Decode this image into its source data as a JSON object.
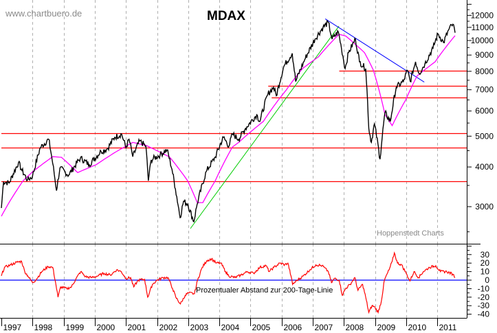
{
  "chart_data": {
    "type": "line",
    "title": "MDAX",
    "watermark": "www.chartbuero.de",
    "source": "Hoppenstedt Charts",
    "x_tick_labels": [
      "1997",
      "1998",
      "1999",
      "2000",
      "2001",
      "2002",
      "2003",
      "2004",
      "2005",
      "2006",
      "2007",
      "2008",
      "2009",
      "2010",
      "2011"
    ],
    "price_panel": {
      "scale": "log",
      "ylim": [
        2300,
        13000
      ],
      "y_tick_labels": [
        3000,
        4000,
        5000,
        6000,
        7000,
        8000,
        9000,
        10000,
        11000,
        12000
      ],
      "price_series": {
        "name": "MDAX",
        "color": "#000000",
        "points": [
          [
            1997.0,
            2970
          ],
          [
            1997.07,
            3600
          ],
          [
            1997.25,
            3560
          ],
          [
            1997.55,
            4130
          ],
          [
            1997.66,
            3900
          ],
          [
            1997.84,
            3640
          ],
          [
            1998.0,
            3740
          ],
          [
            1998.25,
            4600
          ],
          [
            1998.52,
            4890
          ],
          [
            1998.65,
            4100
          ],
          [
            1998.77,
            3370
          ],
          [
            1998.88,
            3970
          ],
          [
            1999.16,
            3770
          ],
          [
            1999.54,
            4270
          ],
          [
            1999.82,
            4070
          ],
          [
            2000.2,
            4480
          ],
          [
            2000.4,
            4560
          ],
          [
            2000.64,
            4960
          ],
          [
            2000.86,
            5080
          ],
          [
            2001.0,
            4600
          ],
          [
            2001.1,
            4890
          ],
          [
            2001.22,
            4310
          ],
          [
            2001.44,
            4830
          ],
          [
            2001.64,
            4650
          ],
          [
            2001.72,
            3620
          ],
          [
            2001.81,
            4210
          ],
          [
            2002.1,
            4370
          ],
          [
            2002.32,
            4530
          ],
          [
            2002.48,
            3930
          ],
          [
            2002.59,
            3410
          ],
          [
            2002.74,
            2770
          ],
          [
            2002.85,
            3120
          ],
          [
            2002.98,
            3060
          ],
          [
            2003.18,
            2690
          ],
          [
            2003.29,
            3060
          ],
          [
            2003.58,
            3870
          ],
          [
            2003.87,
            4300
          ],
          [
            2004.13,
            4960
          ],
          [
            2004.31,
            4650
          ],
          [
            2004.42,
            5080
          ],
          [
            2004.62,
            4890
          ],
          [
            2004.84,
            5290
          ],
          [
            2005.2,
            5840
          ],
          [
            2005.3,
            5560
          ],
          [
            2005.56,
            6790
          ],
          [
            2005.74,
            7130
          ],
          [
            2005.83,
            6700
          ],
          [
            2006.07,
            8290
          ],
          [
            2006.34,
            9110
          ],
          [
            2006.45,
            7430
          ],
          [
            2006.74,
            8700
          ],
          [
            2007.07,
            10100
          ],
          [
            2007.33,
            11000
          ],
          [
            2007.5,
            11400
          ],
          [
            2007.62,
            10100
          ],
          [
            2007.82,
            10650
          ],
          [
            2007.92,
            9460
          ],
          [
            2008.04,
            8160
          ],
          [
            2008.15,
            9160
          ],
          [
            2008.37,
            10100
          ],
          [
            2008.5,
            8570
          ],
          [
            2008.7,
            8160
          ],
          [
            2008.8,
            5290
          ],
          [
            2008.88,
            4780
          ],
          [
            2008.98,
            5470
          ],
          [
            2009.16,
            4230
          ],
          [
            2009.32,
            5930
          ],
          [
            2009.49,
            5560
          ],
          [
            2009.68,
            7130
          ],
          [
            2009.91,
            7430
          ],
          [
            2010.04,
            8050
          ],
          [
            2010.13,
            7430
          ],
          [
            2010.3,
            8570
          ],
          [
            2010.42,
            7870
          ],
          [
            2010.6,
            8450
          ],
          [
            2010.86,
            9460
          ],
          [
            2011.02,
            10500
          ],
          [
            2011.2,
            9850
          ],
          [
            2011.38,
            10880
          ],
          [
            2011.5,
            11250
          ],
          [
            2011.57,
            10580
          ]
        ]
      },
      "ma_series": {
        "name": "200-Tage-Linie",
        "color": "#ff00ff",
        "points": [
          [
            1997.0,
            2800
          ],
          [
            1997.7,
            3620
          ],
          [
            1998.0,
            3860
          ],
          [
            1998.65,
            4310
          ],
          [
            1998.93,
            4290
          ],
          [
            1999.45,
            3840
          ],
          [
            2000.05,
            4070
          ],
          [
            2000.64,
            4440
          ],
          [
            2001.22,
            4780
          ],
          [
            2001.66,
            4670
          ],
          [
            2002.4,
            4300
          ],
          [
            2002.98,
            3620
          ],
          [
            2003.29,
            3090
          ],
          [
            2003.47,
            3090
          ],
          [
            2003.87,
            3620
          ],
          [
            2004.42,
            4620
          ],
          [
            2004.62,
            4780
          ],
          [
            2005.41,
            5560
          ],
          [
            2006.15,
            6990
          ],
          [
            2006.67,
            8160
          ],
          [
            2007.18,
            8880
          ],
          [
            2007.84,
            10460
          ],
          [
            2008.06,
            10330
          ],
          [
            2008.66,
            9160
          ],
          [
            2008.95,
            8050
          ],
          [
            2009.32,
            5840
          ],
          [
            2009.55,
            5400
          ],
          [
            2009.98,
            6490
          ],
          [
            2010.35,
            7740
          ],
          [
            2010.93,
            8570
          ],
          [
            2011.57,
            10360
          ]
        ]
      },
      "horizontal_lines": [
        {
          "value": 8050,
          "from": 2007.85,
          "color": "#ff0000"
        },
        {
          "value": 7200,
          "from": 2005.57,
          "color": "#ff0000"
        },
        {
          "value": 6620,
          "from": 2005.68,
          "color": "#ff0000"
        },
        {
          "value": 5100,
          "from": 1997.0,
          "color": "#ff0000"
        },
        {
          "value": 4600,
          "from": 1997.0,
          "color": "#ff0000"
        },
        {
          "value": 3600,
          "from": 1997.0,
          "color": "#ff0000"
        }
      ],
      "trend_lines": [
        {
          "name": "uptrend",
          "color": "#00cc00",
          "from": [
            2003.07,
            2560
          ],
          "to": [
            2007.84,
            11100
          ]
        },
        {
          "name": "downtrend",
          "color": "#0000ff",
          "from": [
            2007.4,
            11700
          ],
          "to": [
            2010.58,
            7400
          ]
        }
      ]
    },
    "oscillator_panel": {
      "label": "Prozentualer Abstand zur 200-Tage-Linie",
      "ylim": [
        -45,
        40
      ],
      "y_tick_labels": [
        30,
        20,
        10,
        0,
        -10,
        -20,
        -30,
        -40
      ],
      "zero_line_color": "#0000ff",
      "series": {
        "color": "#ff0000",
        "points": [
          [
            1997.0,
            5
          ],
          [
            1997.1,
            15
          ],
          [
            1997.3,
            18
          ],
          [
            1997.5,
            21
          ],
          [
            1997.65,
            22
          ],
          [
            1997.75,
            10
          ],
          [
            1997.85,
            5
          ],
          [
            1998.0,
            -3
          ],
          [
            1998.1,
            0
          ],
          [
            1998.3,
            10
          ],
          [
            1998.5,
            16
          ],
          [
            1998.65,
            15
          ],
          [
            1998.75,
            -5
          ],
          [
            1998.82,
            -20
          ],
          [
            1998.9,
            -8
          ],
          [
            1999.1,
            -10
          ],
          [
            1999.25,
            -8
          ],
          [
            1999.4,
            2
          ],
          [
            1999.55,
            10
          ],
          [
            1999.7,
            4
          ],
          [
            1999.9,
            3
          ],
          [
            2000.1,
            5
          ],
          [
            2000.3,
            8
          ],
          [
            2000.5,
            6
          ],
          [
            2000.7,
            12
          ],
          [
            2000.85,
            10
          ],
          [
            2001.0,
            2
          ],
          [
            2001.15,
            3
          ],
          [
            2001.25,
            -8
          ],
          [
            2001.4,
            0
          ],
          [
            2001.6,
            1
          ],
          [
            2001.7,
            -20
          ],
          [
            2001.85,
            -5
          ],
          [
            2002.0,
            0
          ],
          [
            2002.2,
            3
          ],
          [
            2002.35,
            3
          ],
          [
            2002.5,
            -10
          ],
          [
            2002.6,
            -20
          ],
          [
            2002.75,
            -28
          ],
          [
            2002.9,
            -18
          ],
          [
            2003.0,
            -15
          ],
          [
            2003.2,
            -16
          ],
          [
            2003.3,
            0
          ],
          [
            2003.45,
            15
          ],
          [
            2003.6,
            23
          ],
          [
            2003.75,
            25
          ],
          [
            2003.9,
            20
          ],
          [
            2004.05,
            20
          ],
          [
            2004.2,
            10
          ],
          [
            2004.3,
            5
          ],
          [
            2004.5,
            3
          ],
          [
            2004.7,
            6
          ],
          [
            2004.9,
            10
          ],
          [
            2005.1,
            8
          ],
          [
            2005.3,
            15
          ],
          [
            2005.5,
            17
          ],
          [
            2005.6,
            10
          ],
          [
            2005.75,
            15
          ],
          [
            2005.95,
            20
          ],
          [
            2006.1,
            18
          ],
          [
            2006.2,
            20
          ],
          [
            2006.3,
            5
          ],
          [
            2006.35,
            -5
          ],
          [
            2006.5,
            0
          ],
          [
            2006.7,
            5
          ],
          [
            2006.9,
            12
          ],
          [
            2007.1,
            18
          ],
          [
            2007.3,
            17
          ],
          [
            2007.5,
            10
          ],
          [
            2007.6,
            -3
          ],
          [
            2007.7,
            2
          ],
          [
            2007.85,
            0
          ],
          [
            2007.95,
            -18
          ],
          [
            2008.05,
            -10
          ],
          [
            2008.2,
            -5
          ],
          [
            2008.35,
            3
          ],
          [
            2008.45,
            -12
          ],
          [
            2008.6,
            -5
          ],
          [
            2008.7,
            -20
          ],
          [
            2008.8,
            -38
          ],
          [
            2008.9,
            -30
          ],
          [
            2009.0,
            -32
          ],
          [
            2009.1,
            -38
          ],
          [
            2009.2,
            -25
          ],
          [
            2009.3,
            0
          ],
          [
            2009.45,
            12
          ],
          [
            2009.55,
            22
          ],
          [
            2009.62,
            32
          ],
          [
            2009.72,
            20
          ],
          [
            2009.85,
            18
          ],
          [
            2010.0,
            8
          ],
          [
            2010.12,
            -1
          ],
          [
            2010.25,
            10
          ],
          [
            2010.4,
            3
          ],
          [
            2010.55,
            10
          ],
          [
            2010.75,
            15
          ],
          [
            2010.95,
            17
          ],
          [
            2011.1,
            10
          ],
          [
            2011.3,
            10
          ],
          [
            2011.5,
            7
          ],
          [
            2011.57,
            3
          ]
        ]
      }
    }
  }
}
